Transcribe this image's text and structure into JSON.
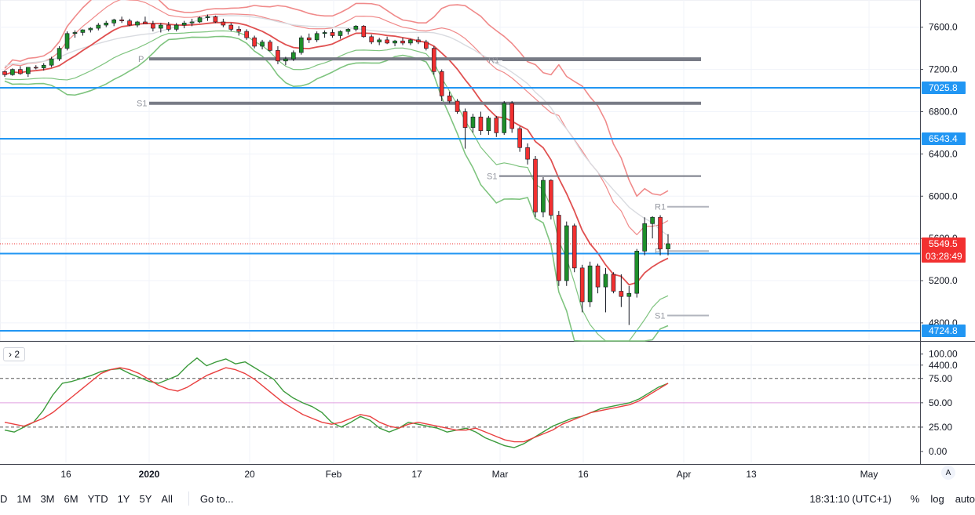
{
  "chart_data": {
    "type": "candlestick",
    "x_ticks": [
      "16",
      "2020",
      "20",
      "Feb",
      "17",
      "Mar",
      "16",
      "Apr",
      "13",
      "May"
    ],
    "y_ticks": [
      "7600.0",
      "7200.0",
      "6800.0",
      "6400.0",
      "6000.0",
      "5600.0",
      "5200.0",
      "4800.0",
      "4400.0"
    ],
    "ylim": [
      4280,
      7880
    ],
    "ohlc": [
      [
        7180,
        7190,
        7130,
        7150
      ],
      [
        7150,
        7210,
        7140,
        7200
      ],
      [
        7200,
        7230,
        7150,
        7160
      ],
      [
        7160,
        7220,
        7130,
        7220
      ],
      [
        7220,
        7240,
        7200,
        7215
      ],
      [
        7215,
        7260,
        7190,
        7240
      ],
      [
        7240,
        7320,
        7220,
        7300
      ],
      [
        7300,
        7420,
        7280,
        7400
      ],
      [
        7400,
        7560,
        7380,
        7540
      ],
      [
        7540,
        7570,
        7500,
        7550
      ],
      [
        7550,
        7580,
        7520,
        7575
      ],
      [
        7575,
        7600,
        7550,
        7590
      ],
      [
        7590,
        7640,
        7570,
        7620
      ],
      [
        7620,
        7660,
        7600,
        7640
      ],
      [
        7640,
        7680,
        7610,
        7670
      ],
      [
        7670,
        7700,
        7640,
        7660
      ],
      [
        7660,
        7680,
        7610,
        7620
      ],
      [
        7620,
        7660,
        7600,
        7650
      ],
      [
        7650,
        7700,
        7630,
        7630
      ],
      [
        7630,
        7660,
        7560,
        7590
      ],
      [
        7590,
        7640,
        7550,
        7620
      ],
      [
        7620,
        7650,
        7560,
        7580
      ],
      [
        7580,
        7640,
        7560,
        7620
      ],
      [
        7620,
        7660,
        7590,
        7640
      ],
      [
        7640,
        7680,
        7610,
        7650
      ],
      [
        7650,
        7700,
        7640,
        7690
      ],
      [
        7690,
        7720,
        7660,
        7700
      ],
      [
        7700,
        7710,
        7640,
        7650
      ],
      [
        7650,
        7680,
        7600,
        7620
      ],
      [
        7620,
        7640,
        7560,
        7580
      ],
      [
        7580,
        7610,
        7520,
        7560
      ],
      [
        7560,
        7580,
        7480,
        7500
      ],
      [
        7500,
        7520,
        7400,
        7420
      ],
      [
        7420,
        7480,
        7390,
        7460
      ],
      [
        7460,
        7480,
        7370,
        7380
      ],
      [
        7380,
        7420,
        7250,
        7280
      ],
      [
        7280,
        7320,
        7240,
        7300
      ],
      [
        7300,
        7380,
        7280,
        7360
      ],
      [
        7360,
        7520,
        7340,
        7500
      ],
      [
        7500,
        7540,
        7450,
        7480
      ],
      [
        7480,
        7560,
        7460,
        7540
      ],
      [
        7540,
        7570,
        7500,
        7550
      ],
      [
        7550,
        7580,
        7500,
        7520
      ],
      [
        7520,
        7570,
        7490,
        7560
      ],
      [
        7560,
        7590,
        7530,
        7580
      ],
      [
        7580,
        7620,
        7560,
        7610
      ],
      [
        7610,
        7620,
        7500,
        7510
      ],
      [
        7510,
        7530,
        7440,
        7460
      ],
      [
        7460,
        7500,
        7430,
        7480
      ],
      [
        7480,
        7510,
        7440,
        7450
      ],
      [
        7450,
        7480,
        7420,
        7470
      ],
      [
        7470,
        7500,
        7430,
        7450
      ],
      [
        7450,
        7490,
        7430,
        7480
      ],
      [
        7480,
        7510,
        7440,
        7460
      ],
      [
        7460,
        7480,
        7380,
        7400
      ],
      [
        7400,
        7420,
        7150,
        7180
      ],
      [
        7180,
        7200,
        6900,
        6950
      ],
      [
        6950,
        6990,
        6880,
        6900
      ],
      [
        6900,
        6920,
        6780,
        6800
      ],
      [
        6800,
        6830,
        6450,
        6650
      ],
      [
        6650,
        6780,
        6600,
        6750
      ],
      [
        6750,
        6800,
        6580,
        6620
      ],
      [
        6620,
        6760,
        6580,
        6740
      ],
      [
        6740,
        6760,
        6560,
        6600
      ],
      [
        6600,
        6900,
        6580,
        6880
      ],
      [
        6880,
        6900,
        6600,
        6640
      ],
      [
        6640,
        6660,
        6420,
        6460
      ],
      [
        6460,
        6500,
        6300,
        6350
      ],
      [
        6350,
        6380,
        5800,
        5850
      ],
      [
        5850,
        6180,
        5800,
        6150
      ],
      [
        6150,
        6160,
        5780,
        5820
      ],
      [
        5820,
        5860,
        5150,
        5200
      ],
      [
        5200,
        5760,
        5150,
        5720
      ],
      [
        5720,
        5740,
        5280,
        5320
      ],
      [
        5320,
        5350,
        4900,
        5000
      ],
      [
        5000,
        5380,
        4950,
        5340
      ],
      [
        5340,
        5360,
        5080,
        5140
      ],
      [
        5140,
        5320,
        4900,
        5260
      ],
      [
        5260,
        5280,
        5080,
        5100
      ],
      [
        5100,
        5260,
        4950,
        5050
      ],
      [
        5050,
        5150,
        4780,
        5080
      ],
      [
        5080,
        5500,
        5040,
        5480
      ],
      [
        5480,
        5800,
        5440,
        5740
      ],
      [
        5740,
        5810,
        5600,
        5800
      ],
      [
        5800,
        5820,
        5440,
        5500
      ],
      [
        5500,
        5640,
        5440,
        5549.5
      ]
    ],
    "levels": [
      {
        "name": "P",
        "value": 7300
      },
      {
        "name": "R1",
        "value": 7290
      },
      {
        "name": "S1",
        "value": 6880
      },
      {
        "name": "S1",
        "value": 6190
      },
      {
        "name": "R1",
        "value": 5900
      },
      {
        "name": "P",
        "value": 5480
      },
      {
        "name": "S1",
        "value": 4870
      }
    ],
    "horizontal_lines": [
      {
        "value": 7025.8,
        "label": "7025.8"
      },
      {
        "value": 6543.4,
        "label": "6543.4"
      },
      {
        "value": 5456.5,
        "label": "5456.5"
      },
      {
        "value": 4724.8,
        "label": "4724.8"
      }
    ],
    "last_price": {
      "value": 5549.5,
      "label": "5549.5",
      "countdown": "03:28:49"
    },
    "osc_pane_toggle": "2",
    "osc_ticks": [
      "100.00",
      "75.00",
      "50.00",
      "25.00",
      "0.00"
    ],
    "osc_ylim": [
      -7,
      102
    ],
    "osc_levels": [
      75,
      50,
      25
    ],
    "osc_series": [
      {
        "color": "#3c9b3c",
        "values": [
          22,
          20,
          25,
          30,
          42,
          58,
          70,
          72,
          75,
          78,
          82,
          84,
          85,
          80,
          76,
          72,
          70,
          74,
          78,
          88,
          96,
          88,
          92,
          95,
          90,
          92,
          86,
          80,
          74,
          62,
          55,
          50,
          46,
          40,
          30,
          25,
          30,
          36,
          32,
          24,
          20,
          24,
          30,
          28,
          26,
          24,
          20,
          22,
          24,
          20,
          14,
          10,
          6,
          4,
          8,
          14,
          20,
          26,
          30,
          34,
          36,
          40,
          44,
          46,
          48,
          50,
          54,
          60,
          66,
          70
        ]
      },
      {
        "color": "#e94040",
        "values": [
          30,
          28,
          26,
          30,
          34,
          40,
          48,
          56,
          64,
          72,
          80,
          84,
          86,
          84,
          80,
          74,
          68,
          64,
          62,
          66,
          72,
          78,
          82,
          86,
          84,
          80,
          74,
          66,
          58,
          50,
          44,
          38,
          34,
          30,
          28,
          30,
          34,
          38,
          36,
          30,
          26,
          24,
          28,
          30,
          28,
          26,
          24,
          22,
          22,
          24,
          20,
          16,
          12,
          10,
          10,
          14,
          18,
          22,
          28,
          32,
          36,
          40,
          42,
          44,
          46,
          48,
          52,
          58,
          64,
          70
        ]
      }
    ]
  },
  "toolbar": {
    "timeframes": [
      "D",
      "1M",
      "3M",
      "6M",
      "YTD",
      "1Y",
      "5Y",
      "All"
    ],
    "goto_label": "Go to...",
    "clock": "18:31:10 (UTC+1)",
    "percent_label": "%",
    "log_label": "log",
    "auto_label": "auto",
    "scale_badge": "A"
  },
  "colors": {
    "up": "#1e8f2a",
    "down": "#f23030",
    "level_blue": "#2196f3",
    "pivot_gray": "#787b86",
    "band_red": "#f08a8a",
    "band_green": "#7fc47f"
  }
}
